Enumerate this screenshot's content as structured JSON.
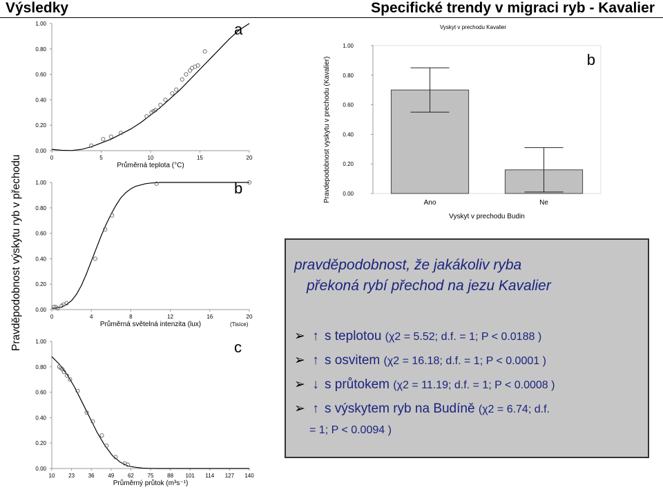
{
  "header": {
    "left": "Výsledky",
    "right": "Specifické trendy v migraci ryb - Kavalier"
  },
  "left_ylabel": "Pravděpodobnost výskytu ryb v přechodu",
  "chart_data": [
    {
      "id": "a",
      "type": "scatter",
      "panel_label": "a",
      "xlabel": "Průměrná teplota (°C)",
      "ylabel": "",
      "xlim": [
        0,
        20
      ],
      "ylim": [
        0,
        1
      ],
      "xticks": [
        "0",
        "5",
        "10",
        "15",
        "20"
      ],
      "yticks": [
        "0.00",
        "0.20",
        "0.40",
        "0.60",
        "0.80",
        "1.00"
      ],
      "points": {
        "x": [
          4.0,
          5.2,
          6.0,
          7.0,
          9.6,
          10.1,
          10.3,
          10.5,
          11.0,
          11.5,
          12.2,
          12.6,
          13.2,
          13.6,
          14.0,
          14.2,
          14.5,
          14.8,
          15.5
        ],
        "y": [
          0.04,
          0.09,
          0.11,
          0.14,
          0.27,
          0.3,
          0.31,
          0.32,
          0.36,
          0.4,
          0.45,
          0.48,
          0.56,
          0.6,
          0.63,
          0.65,
          0.66,
          0.67,
          0.78
        ]
      },
      "curve": {
        "x": [
          0,
          1,
          2,
          3,
          4,
          5,
          6,
          7,
          8,
          9,
          10,
          11,
          12,
          13,
          14,
          15,
          16,
          17,
          18,
          19,
          20
        ],
        "y": [
          0.01,
          0.003,
          0.001,
          0.01,
          0.03,
          0.06,
          0.09,
          0.13,
          0.17,
          0.22,
          0.28,
          0.34,
          0.41,
          0.48,
          0.56,
          0.64,
          0.72,
          0.8,
          0.88,
          0.95,
          1.0
        ]
      }
    },
    {
      "id": "b_light",
      "type": "scatter",
      "panel_label": "b",
      "xlabel": "Průměrná světelná intenzita (lux)",
      "xunit": "(Tisíce)",
      "ylabel": "",
      "xlim": [
        0,
        20
      ],
      "ylim": [
        0,
        1
      ],
      "xticks": [
        "0",
        "4",
        "8",
        "12",
        "16",
        "20"
      ],
      "yticks": [
        "0.00",
        "0.20",
        "0.40",
        "0.60",
        "0.80",
        "1.00"
      ],
      "points": {
        "x": [
          0.2,
          0.4,
          0.6,
          1.0,
          1.2,
          1.5,
          4.4,
          5.4,
          6.1,
          10.6,
          20.0
        ],
        "y": [
          0.02,
          0.02,
          0.01,
          0.03,
          0.04,
          0.05,
          0.4,
          0.63,
          0.74,
          0.99,
          1.0
        ]
      },
      "curve": {
        "x": [
          0,
          0.5,
          1,
          1.5,
          2,
          2.5,
          3,
          3.5,
          4,
          4.5,
          5,
          5.5,
          6,
          6.5,
          7,
          7.5,
          8,
          8.5,
          9,
          9.5,
          10,
          11,
          12,
          14,
          16,
          18,
          20
        ],
        "y": [
          0.01,
          0.012,
          0.02,
          0.04,
          0.07,
          0.12,
          0.19,
          0.28,
          0.38,
          0.48,
          0.58,
          0.67,
          0.75,
          0.82,
          0.88,
          0.92,
          0.95,
          0.97,
          0.98,
          0.99,
          0.995,
          1.0,
          1.0,
          1.0,
          1.0,
          1.0,
          1.0
        ]
      }
    },
    {
      "id": "c",
      "type": "scatter",
      "panel_label": "c",
      "xlabel": "Průměrný průtok (m³s⁻¹)",
      "ylabel": "",
      "xlim": [
        10,
        140
      ],
      "ylim": [
        0,
        1
      ],
      "xticks": [
        "10",
        "23",
        "36",
        "49",
        "62",
        "75",
        "88",
        "101",
        "114",
        "127",
        "140"
      ],
      "yticks": [
        "0.00",
        "0.20",
        "0.40",
        "0.60",
        "0.80",
        "1.00"
      ],
      "points": {
        "x": [
          15,
          16,
          17,
          18,
          20,
          22,
          27,
          33,
          37,
          43,
          46,
          52,
          58,
          60
        ],
        "y": [
          0.8,
          0.79,
          0.78,
          0.76,
          0.73,
          0.7,
          0.61,
          0.44,
          0.37,
          0.26,
          0.18,
          0.09,
          0.04,
          0.03
        ]
      },
      "curve": {
        "x": [
          10,
          15,
          20,
          25,
          30,
          35,
          40,
          45,
          50,
          55,
          60,
          65,
          70,
          75,
          80,
          90,
          100,
          140
        ],
        "y": [
          0.88,
          0.82,
          0.74,
          0.64,
          0.52,
          0.4,
          0.28,
          0.18,
          0.1,
          0.05,
          0.02,
          0.01,
          0.003,
          0.001,
          0.0,
          0.0,
          0.0,
          0.0
        ]
      }
    },
    {
      "id": "b_bar",
      "type": "bar",
      "panel_label": "b",
      "title": "Vyskyt v prechodu Kavalier",
      "xlabel": "Vyskyt v prechodu Budin",
      "ylabel": "Pravdepodobnost vyskytu v prechodu (Kavalier)",
      "ylim": [
        0,
        1
      ],
      "yticks": [
        "0.00",
        "0.20",
        "0.40",
        "0.60",
        "0.80",
        "1.00"
      ],
      "categories": [
        "Ano",
        "Ne"
      ],
      "values": [
        0.7,
        0.16
      ],
      "error_low": [
        0.55,
        0.01
      ],
      "error_high": [
        0.85,
        0.31
      ],
      "bar_color": "#c0c0c0"
    }
  ],
  "info": {
    "title_line1": "pravděpodobnost, že jakákoliv ryba",
    "title_line2": "překoná rybí přechod na jezu Kavalier",
    "rows": [
      {
        "text": "s teplotou",
        "stat": "(χ2 = 5.52; d.f. = 1; P < 0.0188 )",
        "dir": "up"
      },
      {
        "text": "s osvitem",
        "stat": "(χ2 = 16.18; d.f. = 1; P < 0.0001 )",
        "dir": "up"
      },
      {
        "text": "s průtokem",
        "stat": "(χ2 = 11.19; d.f. = 1; P < 0.0008 )",
        "dir": "down"
      },
      {
        "text": "s výskytem ryb na Budíně",
        "stat": "(χ2 = 6.74; d.f.",
        "dir": "up"
      }
    ],
    "extra_line": "= 1; P < 0.0094 )",
    "bullet_glyph": "➢",
    "up_glyph": "↑",
    "down_glyph": "↓"
  }
}
